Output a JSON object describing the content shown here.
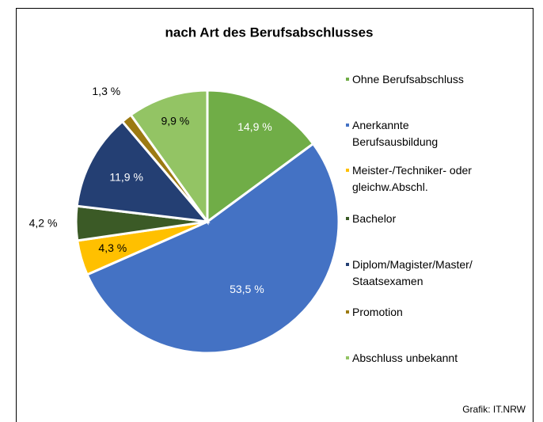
{
  "chart_data": {
    "type": "pie",
    "title": "nach Art des Berufsabschlusses",
    "categories": [
      "Ohne Berufsabschluss",
      "Anerkannte\nBerufsausbildung",
      "Meister-/Techniker- oder\ngleichw.Abschl.",
      "Bachelor",
      "Diplom/Magister/Master/\nStaatsexamen",
      "Promotion",
      "Abschluss unbekannt"
    ],
    "values": [
      14.9,
      53.5,
      4.3,
      4.2,
      11.9,
      1.3,
      9.9
    ],
    "value_labels": [
      "14,9 %",
      "53,5 %",
      "4,3 %",
      "4,2 %",
      "11,9 %",
      "1,3 %",
      "9,9 %"
    ],
    "colors": [
      "#70ad47",
      "#4472c4",
      "#ffc000",
      "#3b5a26",
      "#243f73",
      "#9c7a12",
      "#93c464"
    ],
    "source": "Grafik: IT.NRW"
  }
}
